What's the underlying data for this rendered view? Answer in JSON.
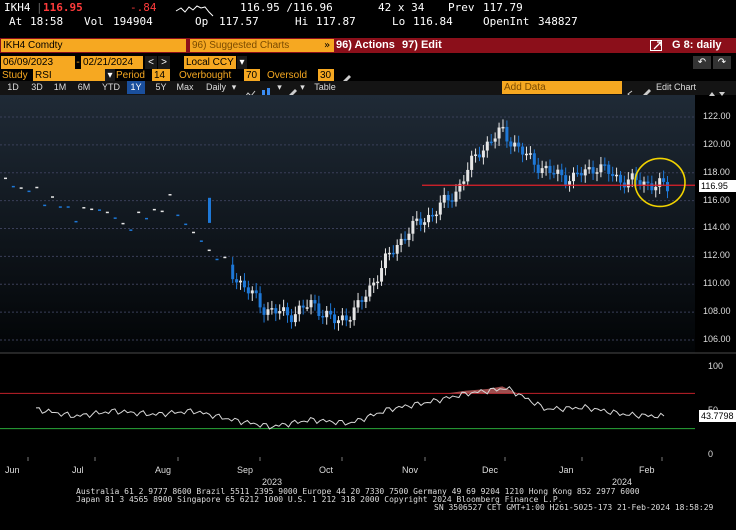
{
  "quote": {
    "ticker": "IKH4",
    "last": "116.95",
    "change": "-.84",
    "bid_ask": "116.95 /116.96",
    "size": "42 x 34",
    "prev_label": "Prev",
    "prev": "117.79",
    "time_label": "At",
    "time": "18:58",
    "vol_label": "Vol",
    "vol": "194904",
    "open_label": "Op",
    "open": "117.57",
    "hi_label": "Hi",
    "hi": "117.87",
    "lo_label": "Lo",
    "lo": "116.84",
    "oi_label": "OpenInt",
    "oi": "348827"
  },
  "menubar": {
    "security": "IKH4 Comdty",
    "suggested": "96) Suggested Charts",
    "suggested_arrow": "»",
    "actions": "96) Actions",
    "edit": "97) Edit",
    "graph": "G 8: daily"
  },
  "controls": {
    "start_date": "06/09/2023",
    "end_date": "02/21/2024",
    "currency": "Local CCY",
    "study_label": "Study",
    "study_value": "RSI",
    "period_label": "Period",
    "period_value": "14",
    "overbought_label": "Overbought",
    "overbought_value": "70",
    "oversold_label": "Oversold",
    "oversold_value": "30"
  },
  "toolbar": {
    "ranges": [
      "1D",
      "3D",
      "1M",
      "6M",
      "YTD",
      "1Y",
      "5Y",
      "Max"
    ],
    "selected_range": "1Y",
    "frequency": "Daily",
    "table": "Table",
    "add_data": "Add Data",
    "edit_chart": "Edit Chart"
  },
  "chart_data": [
    {
      "type": "candlestick",
      "title": "",
      "y_ticks": [
        "122.00",
        "120.00",
        "118.00",
        "116.00",
        "114.00",
        "112.00",
        "110.00",
        "108.00",
        "106.00"
      ],
      "ylim": [
        105.5,
        123
      ],
      "last_price_label": "116.95",
      "reference_line": 117.1,
      "x_ticks": [
        "Jun",
        "Jul",
        "Aug",
        "Sep",
        "Oct",
        "Nov",
        "Dec",
        "Jan",
        "Feb"
      ],
      "year_labels": [
        "2023",
        "2024"
      ],
      "series": [
        {
          "x": "Jun",
          "y": 117.4
        },
        {
          "x": "Jun",
          "y": 116.8
        },
        {
          "x": "Jul",
          "y": 116.0
        },
        {
          "x": "Jul",
          "y": 115.0
        },
        {
          "x": "Jul",
          "y": 115.6
        },
        {
          "x": "Aug",
          "y": 114.2
        },
        {
          "x": "Aug",
          "y": 115.0
        },
        {
          "x": "Aug",
          "y": 116.0
        },
        {
          "x": "Sep",
          "y": 113.5
        },
        {
          "x": "Sep",
          "y": 112.0
        },
        {
          "x": "Sep",
          "y": 110.0
        },
        {
          "x": "Sep",
          "y": 108.2
        },
        {
          "x": "Oct",
          "y": 107.8
        },
        {
          "x": "Oct",
          "y": 108.6
        },
        {
          "x": "Oct",
          "y": 107.2
        },
        {
          "x": "Oct",
          "y": 108.5
        },
        {
          "x": "Nov",
          "y": 111.5
        },
        {
          "x": "Nov",
          "y": 113.8
        },
        {
          "x": "Nov",
          "y": 115.0
        },
        {
          "x": "Nov",
          "y": 116.5
        },
        {
          "x": "Dec",
          "y": 119.5
        },
        {
          "x": "Dec",
          "y": 121.0
        },
        {
          "x": "Dec",
          "y": 119.2
        },
        {
          "x": "Jan",
          "y": 118.0
        },
        {
          "x": "Jan",
          "y": 117.6
        },
        {
          "x": "Jan",
          "y": 118.5
        },
        {
          "x": "Feb",
          "y": 117.5
        },
        {
          "x": "Feb",
          "y": 117.3
        },
        {
          "x": "Feb",
          "y": 116.95
        }
      ]
    },
    {
      "type": "line",
      "title": "",
      "study": "RSI",
      "y_ticks": [
        "100",
        "50",
        "0"
      ],
      "ylim": [
        0,
        100
      ],
      "overbought": 70,
      "oversold": 30,
      "last_value_label": "43.7798",
      "series": [
        {
          "x": "Jun",
          "y": 52
        },
        {
          "x": "Jul",
          "y": 44
        },
        {
          "x": "Jul",
          "y": 50
        },
        {
          "x": "Aug",
          "y": 46
        },
        {
          "x": "Aug",
          "y": 50
        },
        {
          "x": "Sep",
          "y": 40
        },
        {
          "x": "Sep",
          "y": 32
        },
        {
          "x": "Oct",
          "y": 40
        },
        {
          "x": "Oct",
          "y": 36
        },
        {
          "x": "Nov",
          "y": 52
        },
        {
          "x": "Nov",
          "y": 60
        },
        {
          "x": "Dec",
          "y": 70
        },
        {
          "x": "Dec",
          "y": 76
        },
        {
          "x": "Jan",
          "y": 52
        },
        {
          "x": "Jan",
          "y": 54
        },
        {
          "x": "Feb",
          "y": 46
        },
        {
          "x": "Feb",
          "y": 43.78
        }
      ]
    }
  ],
  "footer": {
    "line1": "Australia 61 2 9777 8600 Brazil 5511 2395 9000 Europe 44 20 7330 7500 Germany 49 69 9204 1210 Hong Kong 852 2977 6000",
    "line2": "Japan 81 3 4565 8900        Singapore 65 6212 1000        U.S. 1 212 318 2000          Copyright 2024 Bloomberg Finance L.P.",
    "line3": "SN 3506527 CET  GMT+1:00 H261-5025-173 21-Feb-2024 18:58:29"
  },
  "colors": {
    "amber": "#f6a821",
    "menubar": "#8b0f1a",
    "down": "#1e78d7",
    "up": "#e6e6e6",
    "ref_line": "#e0202a",
    "highlight": "#f2d300"
  }
}
